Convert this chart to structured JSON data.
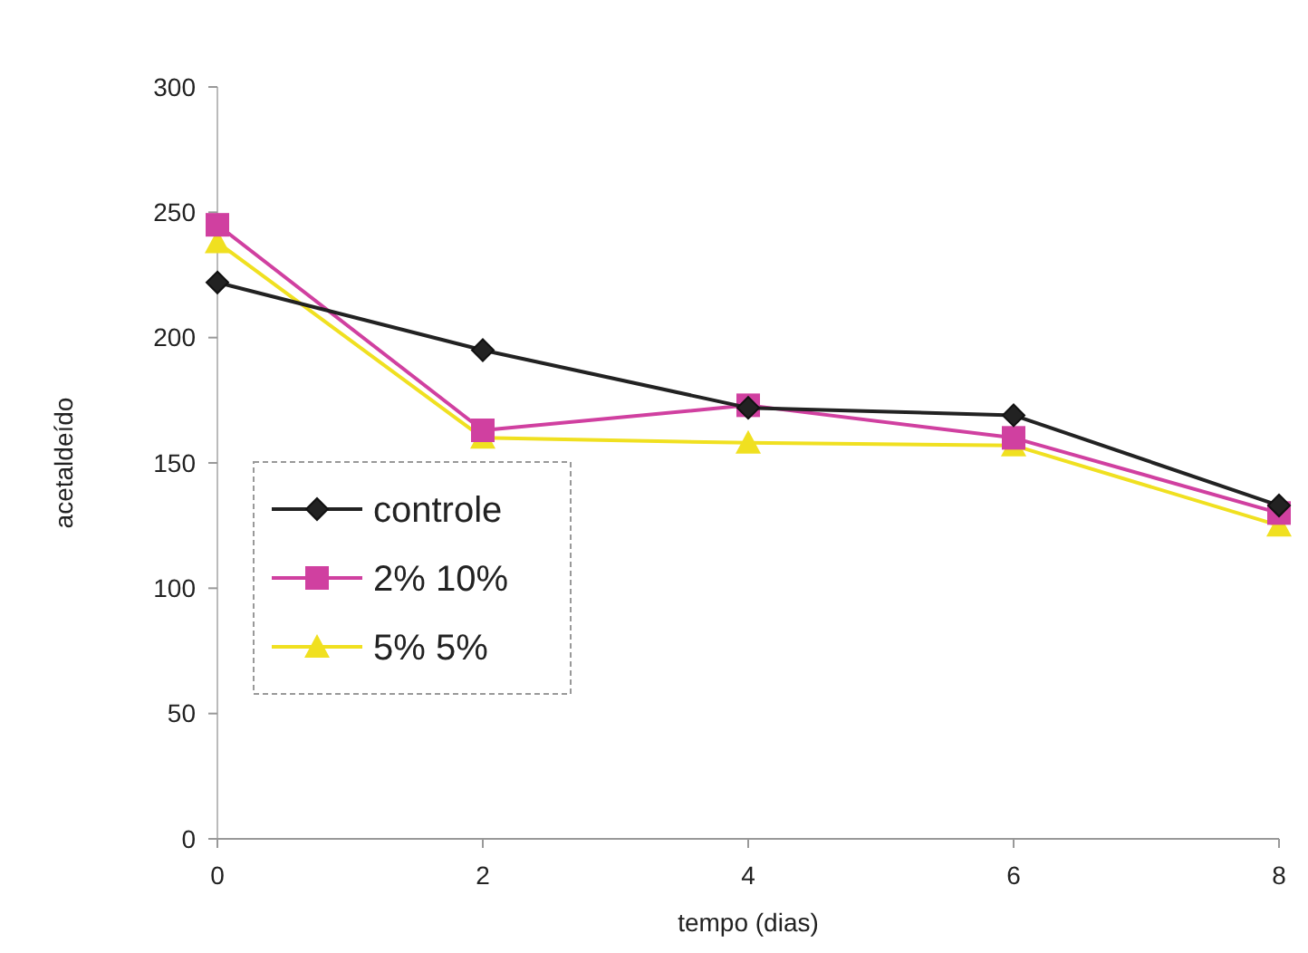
{
  "chart_data": {
    "type": "line",
    "xlabel": "tempo (dias)",
    "ylabel": "acetaldeído",
    "x": [
      0,
      2,
      4,
      6,
      8
    ],
    "xlim": [
      0,
      8
    ],
    "xticks": [
      0,
      2,
      4,
      6,
      8
    ],
    "ylim": [
      0,
      300
    ],
    "yticks": [
      0,
      50,
      100,
      150,
      200,
      250,
      300
    ],
    "grid": false,
    "legend": "bottom left",
    "line_style": "solid",
    "series": [
      {
        "name": "controle",
        "color": "#222222",
        "marker": "diamond",
        "values": [
          222,
          195,
          172,
          169,
          133
        ]
      },
      {
        "name": "2% 10%",
        "color": "#d040a0",
        "marker": "square",
        "values": [
          245,
          163,
          173,
          160,
          130
        ]
      },
      {
        "name": "5% 5%",
        "color": "#f0e020",
        "marker": "triangle",
        "values": [
          238,
          160,
          158,
          157,
          125
        ]
      }
    ]
  }
}
